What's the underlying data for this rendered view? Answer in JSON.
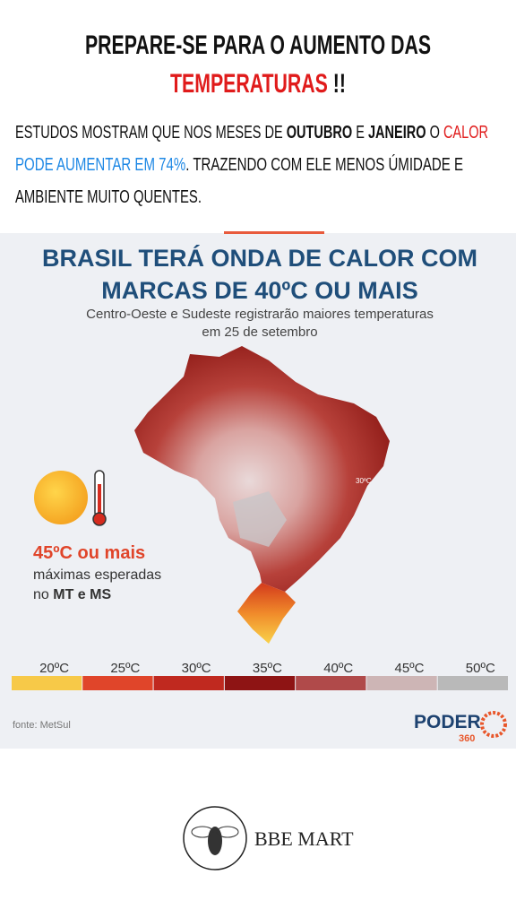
{
  "header": {
    "title_line1": "PREPARE-SE PARA O AUMENTO DAS",
    "title_highlight": "TEMPERATURAS",
    "title_suffix": " !!"
  },
  "body": {
    "lines": [
      [
        "ESTUDOS MOSTRAM QUE NOS MESES DE ",
        "OUTUBRO",
        " E ",
        "JANEIRO",
        " O ",
        "CALOR"
      ],
      [
        "PODE AUMENTAR EM 74%",
        ". TRAZENDO COM ELE MENOS ÚMIDADE E"
      ],
      [
        "AMBIENTE MUITO QUENTES."
      ]
    ]
  },
  "infographic": {
    "title_lines": [
      "BRASIL TERÁ ONDA DE CALOR COM",
      "MARCAS DE 40ºC OU MAIS"
    ],
    "subtitle_lines": [
      "Centro-Oeste e Sudeste registrarão maiores temperaturas",
      "em 25 de setembro"
    ],
    "callout": {
      "headline": "45ºC ou mais",
      "line1": "máximas esperadas",
      "line2_prefix": "no ",
      "line2_bold": "MT e MS"
    },
    "map_label": "30ºC",
    "legend_labels": [
      "20ºC",
      "25ºC",
      "30ºC",
      "35ºC",
      "40ºC",
      "45ºC",
      "50ºC"
    ],
    "source": "fonte: MetSul",
    "logo": {
      "name": "PODER",
      "number": "360"
    }
  },
  "footer": {
    "brand": "BBE MART"
  }
}
